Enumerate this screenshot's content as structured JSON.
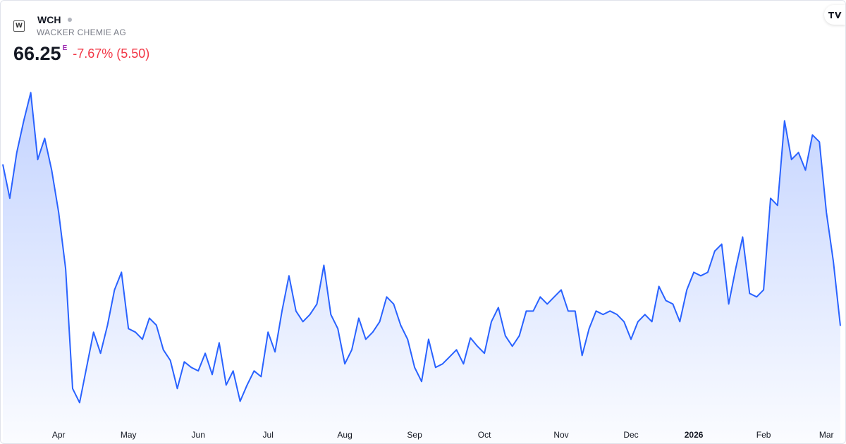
{
  "chart_data": {
    "type": "area",
    "symbol": "WCH",
    "name": "WACKER CHEMIE AG",
    "price": "66.25",
    "price_flag": "E",
    "change": "-7.67% (5.50)",
    "categories": [
      null,
      null,
      null,
      null,
      null,
      null,
      null,
      null,
      "Apr",
      null,
      null,
      null,
      null,
      null,
      null,
      null,
      null,
      null,
      "May",
      null,
      null,
      null,
      null,
      null,
      null,
      null,
      null,
      null,
      "Jun",
      null,
      null,
      null,
      null,
      null,
      null,
      null,
      null,
      null,
      "Jul",
      null,
      null,
      null,
      null,
      null,
      null,
      null,
      null,
      null,
      null,
      "Aug",
      null,
      null,
      null,
      null,
      null,
      null,
      null,
      null,
      null,
      "Sep",
      null,
      null,
      null,
      null,
      null,
      null,
      null,
      null,
      null,
      "Oct",
      null,
      null,
      null,
      null,
      null,
      null,
      null,
      null,
      null,
      null,
      "Nov",
      null,
      null,
      null,
      null,
      null,
      null,
      null,
      null,
      null,
      "Dec",
      null,
      null,
      null,
      null,
      null,
      null,
      null,
      null,
      "2026",
      null,
      null,
      null,
      null,
      null,
      null,
      null,
      null,
      null,
      "Feb",
      null,
      null,
      null,
      null,
      null,
      null,
      null,
      null,
      "Mar",
      null,
      null
    ],
    "values": [
      80.08,
      77.18,
      81.1,
      83.82,
      86.23,
      80.5,
      82.31,
      79.59,
      75.97,
      71.14,
      60.88,
      59.67,
      62.69,
      65.71,
      63.9,
      66.31,
      69.33,
      70.84,
      66.01,
      65.71,
      65.1,
      66.91,
      66.31,
      64.2,
      63.29,
      60.88,
      63.17,
      62.69,
      62.39,
      63.9,
      62.08,
      64.8,
      61.18,
      62.39,
      59.79,
      61.18,
      62.39,
      61.9,
      65.71,
      64.02,
      67.52,
      70.54,
      67.52,
      66.61,
      67.22,
      68.12,
      71.44,
      67.22,
      66.01,
      62.99,
      64.2,
      66.91,
      65.1,
      65.71,
      66.61,
      68.73,
      68.12,
      66.31,
      65.1,
      62.69,
      61.48,
      65.1,
      62.69,
      62.99,
      63.59,
      64.2,
      62.99,
      65.22,
      64.5,
      63.9,
      66.61,
      67.82,
      65.4,
      64.5,
      65.4,
      67.52,
      67.52,
      68.73,
      68.12,
      68.73,
      69.33,
      67.52,
      67.52,
      63.71,
      66.01,
      67.52,
      67.22,
      67.52,
      67.22,
      66.61,
      65.1,
      66.61,
      67.22,
      66.61,
      69.63,
      68.42,
      68.12,
      66.61,
      69.33,
      70.84,
      70.54,
      70.84,
      72.65,
      73.25,
      68.12,
      71.14,
      73.86,
      69.03,
      68.73,
      69.33,
      77.18,
      76.57,
      83.82,
      80.5,
      81.1,
      79.59,
      82.61,
      82.01,
      75.97,
      71.75,
      66.25
    ],
    "color": "#2962ff",
    "ylim": [
      58,
      90
    ]
  }
}
